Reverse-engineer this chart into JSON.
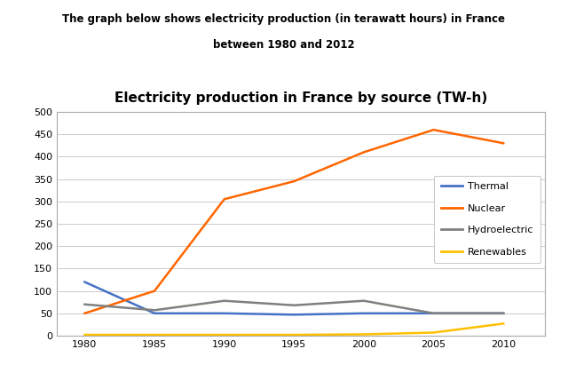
{
  "title": "Electricity production in France by source (TW-h)",
  "suptitle_line1": "The graph below shows electricity production (in terawatt hours) in France",
  "suptitle_line2": "between 1980 and 2012",
  "years": [
    1980,
    1985,
    1990,
    1995,
    2000,
    2005,
    2010
  ],
  "thermal": [
    120,
    50,
    50,
    47,
    50,
    50,
    50
  ],
  "nuclear": [
    50,
    100,
    305,
    345,
    410,
    460,
    430
  ],
  "hydroelectric": [
    70,
    57,
    78,
    68,
    78,
    50,
    50
  ],
  "renewables": [
    2,
    2,
    2,
    2,
    3,
    7,
    27
  ],
  "thermal_color": "#4472C4",
  "nuclear_color": "#FF6600",
  "hydro_color": "#808080",
  "renewables_color": "#FFC000",
  "ylim": [
    0,
    500
  ],
  "yticks": [
    0,
    50,
    100,
    150,
    200,
    250,
    300,
    350,
    400,
    450,
    500
  ],
  "xticks": [
    1980,
    1985,
    1990,
    1995,
    2000,
    2005,
    2010
  ],
  "grid_color": "#CCCCCC",
  "background_color": "#FFFFFF",
  "legend_labels": [
    "Thermal",
    "Nuclear",
    "Hydroelectric",
    "Renewables"
  ]
}
